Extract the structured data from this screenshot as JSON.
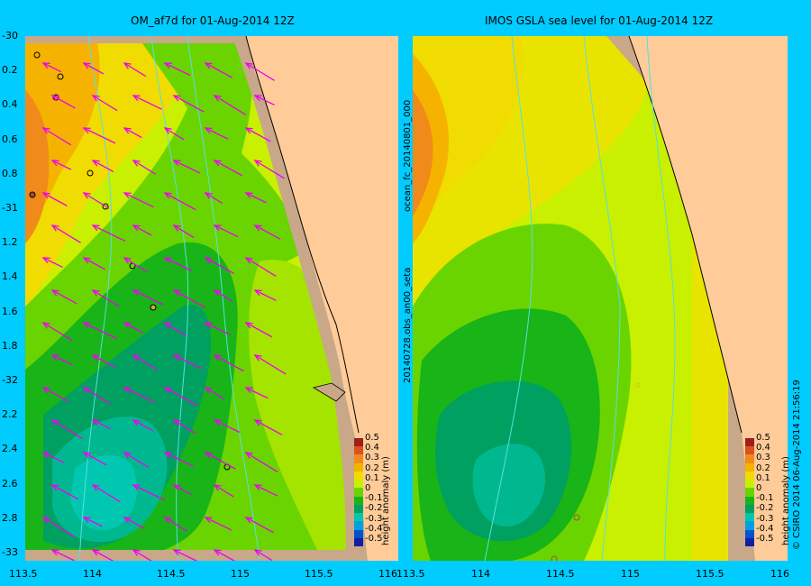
{
  "left_panel": {
    "title": "OM_af7d for 01-Aug-2014 12Z"
  },
  "right_panel": {
    "title": "IMOS GSLA sea level  for 01-Aug-2014 12Z",
    "side_note": "ocean_fc_20140801_000"
  },
  "y_axis_labels": [
    "-30",
    "0.2",
    "0.4",
    "0.6",
    "0.8",
    "-31",
    "1.2",
    "1.4",
    "1.6",
    "1.8",
    "-32",
    "2.2",
    "2.4",
    "2.6",
    "2.8",
    "-33"
  ],
  "x_axis_left": [
    "113.5",
    "114",
    "114.5",
    "115",
    "115.5",
    "116"
  ],
  "x_axis_right": [
    "113.5",
    "114",
    "114.5",
    "115",
    "115.5",
    "116"
  ],
  "colorbar": {
    "title": "height anomaly (m)",
    "ticks": [
      "0.5",
      "0.4",
      "0.3",
      "0.2",
      "0.1",
      "0",
      "-0.1",
      "-0.2",
      "-0.3",
      "-0.4",
      "-0.5"
    ],
    "colors": [
      "#a01d1d",
      "#d9531c",
      "#f08a1a",
      "#f5b300",
      "#f0dc00",
      "#c8f000",
      "#6ad400",
      "#18b418",
      "#00a060",
      "#00c8a8",
      "#00a0e0",
      "#0050d0",
      "#1020a0"
    ]
  },
  "obs_note": "20140728.obs_an00_seta",
  "credit": "© CSIRO 2014   06-Aug-2014 21:56:19",
  "colors": {
    "background": "#00ccff",
    "land": "#ffcc99",
    "shelf": "#c8a888",
    "arrow": "#ee00ee"
  }
}
